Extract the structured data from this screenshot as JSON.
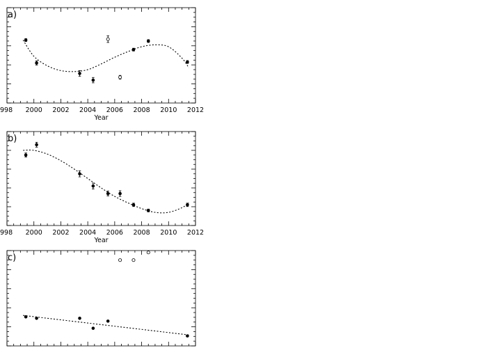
{
  "chart_data": [
    {
      "panel": "a)",
      "type": "scatter",
      "xlabel": "Year",
      "xlim": [
        1998,
        2012
      ],
      "xticks": [
        "998",
        "2000",
        "2002",
        "2004",
        "2006",
        "2008",
        "2010",
        "2012"
      ],
      "ylim": [
        0,
        10
      ],
      "series": [
        {
          "marker": "filled",
          "x": [
            1999.4,
            2000.2,
            2003.4,
            2004.4,
            2007.4,
            2008.5,
            2011.4
          ],
          "y": [
            6.6,
            4.2,
            3.1,
            2.4,
            5.6,
            6.5,
            4.3
          ],
          "err": [
            0.15,
            0.22,
            0.3,
            0.28,
            0.15,
            0.15,
            0.15
          ]
        },
        {
          "marker": "open",
          "x": [
            2005.5,
            2006.4
          ],
          "y": [
            6.7,
            2.7
          ],
          "err": [
            0.35,
            0.2
          ]
        }
      ],
      "fit": {
        "x": [
          1999.2,
          2000,
          2001,
          2002,
          2003,
          2004,
          2005,
          2006,
          2007,
          2008,
          2009,
          2010,
          2011,
          2011.5
        ],
        "y": [
          6.6,
          4.9,
          3.9,
          3.4,
          3.3,
          3.5,
          4.1,
          4.8,
          5.4,
          5.9,
          6.1,
          5.9,
          4.7,
          3.7
        ]
      }
    },
    {
      "panel": "b)",
      "type": "scatter",
      "xlabel": "Year",
      "xlim": [
        1998,
        2012
      ],
      "xticks": [
        "998",
        "2000",
        "2002",
        "2004",
        "2006",
        "2008",
        "2010",
        "2012"
      ],
      "ylim": [
        0,
        10
      ],
      "series": [
        {
          "marker": "filled",
          "x": [
            1999.4,
            2000.2,
            2003.4,
            2004.4,
            2005.5,
            2006.4,
            2007.4,
            2008.5,
            2011.4
          ],
          "y": [
            7.5,
            8.6,
            5.5,
            4.2,
            3.4,
            3.4,
            2.2,
            1.6,
            2.2
          ],
          "err": [
            0.22,
            0.26,
            0.32,
            0.32,
            0.26,
            0.3,
            0.18,
            0.15,
            0.18
          ]
        }
      ],
      "fit": {
        "x": [
          1999.2,
          2000,
          2001,
          2002,
          2003,
          2004,
          2005,
          2006,
          2007,
          2008,
          2009,
          2010,
          2011,
          2011.5
        ],
        "y": [
          8.0,
          8.0,
          7.6,
          6.9,
          6.0,
          5.0,
          4.0,
          3.1,
          2.4,
          1.8,
          1.4,
          1.4,
          1.9,
          2.4
        ]
      }
    },
    {
      "panel": "c)",
      "type": "scatter",
      "xlim": [
        1998,
        2012
      ],
      "ylim": [
        0,
        10
      ],
      "series": [
        {
          "marker": "filled",
          "x": [
            1999.4,
            2000.2,
            2003.4,
            2004.4,
            2005.5,
            2011.4
          ],
          "y": [
            3.05,
            2.9,
            2.9,
            1.85,
            2.6,
            1.05
          ]
        },
        {
          "marker": "open",
          "x": [
            2006.4,
            2007.4,
            2008.5
          ],
          "y": [
            9.0,
            9.0,
            9.8
          ]
        }
      ],
      "fit": {
        "x": [
          1999.2,
          2011.5
        ],
        "y": [
          3.2,
          1.15
        ]
      }
    }
  ]
}
